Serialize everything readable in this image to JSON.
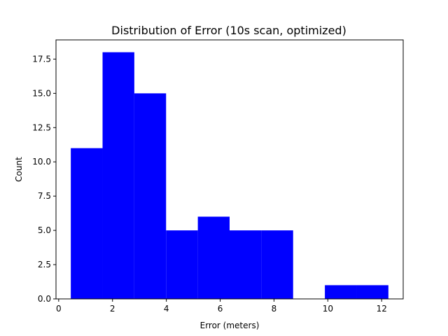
{
  "chart_data": {
    "type": "bar",
    "title": "Distribution of Error (10s scan, optimized)",
    "xlabel": "Error (meters)",
    "ylabel": "Count",
    "xlim": [
      -0.1,
      12.8
    ],
    "ylim": [
      0,
      18.9
    ],
    "xticks": [
      0,
      2,
      4,
      6,
      8,
      10,
      12
    ],
    "xtick_labels": [
      "0",
      "2",
      "4",
      "6",
      "8",
      "10",
      "12"
    ],
    "yticks": [
      0.0,
      2.5,
      5.0,
      7.5,
      10.0,
      12.5,
      15.0,
      17.5
    ],
    "ytick_labels": [
      "0.0",
      "2.5",
      "5.0",
      "7.5",
      "10.0",
      "12.5",
      "15.0",
      "17.5"
    ],
    "bar_color": "#0000ff",
    "grid": false,
    "bins": [
      {
        "x0": 0.45,
        "x1": 1.63,
        "value": 11
      },
      {
        "x0": 1.63,
        "x1": 2.81,
        "value": 18
      },
      {
        "x0": 2.81,
        "x1": 3.99,
        "value": 15
      },
      {
        "x0": 3.99,
        "x1": 5.17,
        "value": 5
      },
      {
        "x0": 5.17,
        "x1": 6.35,
        "value": 6
      },
      {
        "x0": 6.35,
        "x1": 7.53,
        "value": 5
      },
      {
        "x0": 7.53,
        "x1": 8.71,
        "value": 5
      },
      {
        "x0": 8.71,
        "x1": 9.89,
        "value": 0
      },
      {
        "x0": 9.89,
        "x1": 11.07,
        "value": 1
      },
      {
        "x0": 11.07,
        "x1": 12.25,
        "value": 1
      }
    ]
  }
}
